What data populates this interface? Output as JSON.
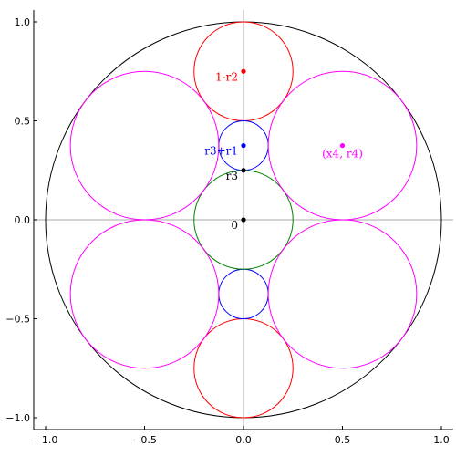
{
  "chart_data": {
    "type": "circles",
    "xlim": [
      -1.06,
      1.06
    ],
    "ylim": [
      -1.06,
      1.06
    ],
    "xticks": [
      {
        "value": -1,
        "label": "−1.0"
      },
      {
        "value": -0.5,
        "label": "−0.5"
      },
      {
        "value": 0,
        "label": "0.0"
      },
      0.5,
      {
        "value": 1,
        "label": "1.0"
      }
    ],
    "yticks": [
      {
        "value": -1,
        "label": "−1.0"
      },
      {
        "value": -0.5,
        "label": "−0.5"
      },
      {
        "value": 0,
        "label": "0.0"
      },
      0.5,
      {
        "value": 1,
        "label": "1.0"
      }
    ],
    "zero_lines": true,
    "circles": [
      {
        "x": 0,
        "y": 0,
        "r": 1,
        "color": "#000000"
      },
      {
        "x": 0,
        "y": 0.75,
        "r": 0.25,
        "color": "#ff0000"
      },
      {
        "x": 0,
        "y": -0.75,
        "r": 0.25,
        "color": "#ff0000"
      },
      {
        "x": 0,
        "y": 0.375,
        "r": 0.125,
        "color": "#0000ff"
      },
      {
        "x": 0,
        "y": -0.375,
        "r": 0.125,
        "color": "#0000ff"
      },
      {
        "x": 0,
        "y": 0,
        "r": 0.25,
        "color": "#008000"
      },
      {
        "x": -0.5,
        "y": 0.375,
        "r": 0.375,
        "color": "#ff00ff"
      },
      {
        "x": 0.5,
        "y": 0.375,
        "r": 0.375,
        "color": "#ff00ff"
      },
      {
        "x": -0.5,
        "y": -0.375,
        "r": 0.375,
        "color": "#ff00ff"
      },
      {
        "x": 0.5,
        "y": -0.375,
        "r": 0.375,
        "color": "#ff00ff"
      }
    ],
    "points": [
      {
        "x": 0,
        "y": 0,
        "color": "#000000",
        "label": "0"
      },
      {
        "x": 0,
        "y": 0.25,
        "color": "#000000",
        "label": "r3"
      },
      {
        "x": 0,
        "y": 0.375,
        "color": "#0000ff",
        "label": "r3+r1"
      },
      {
        "x": 0,
        "y": 0.75,
        "color": "#ff0000",
        "label": "1-r2"
      },
      {
        "x": 0.5,
        "y": 0.375,
        "color": "#ff00ff",
        "label": "(x4, r4)"
      }
    ]
  }
}
